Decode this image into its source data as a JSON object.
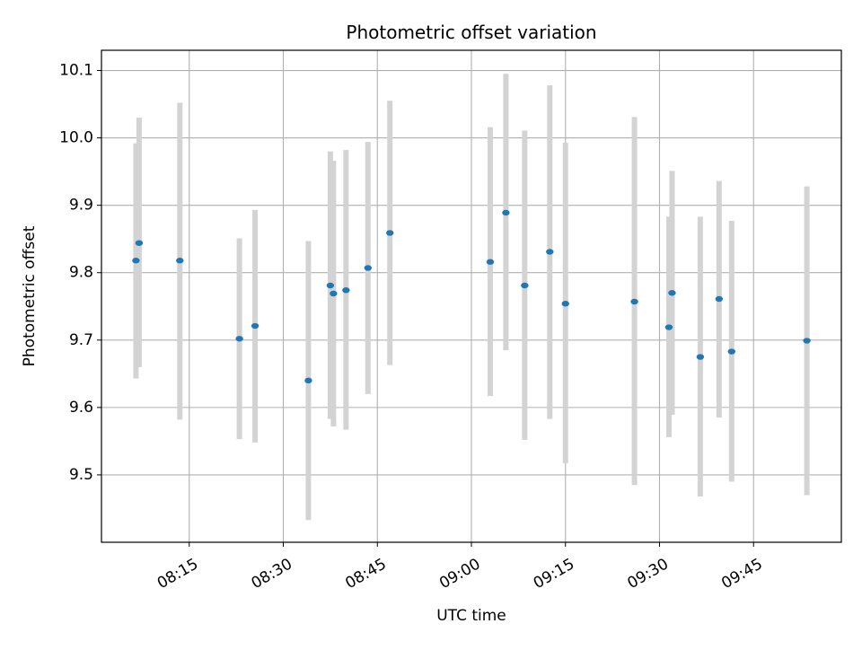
{
  "chart_data": {
    "type": "scatter",
    "title": "Photometric offset variation",
    "xlabel": "UTC time",
    "ylabel": "Photometric offset",
    "xlim": [
      "08:01",
      "09:59"
    ],
    "ylim": [
      9.4,
      10.13
    ],
    "xticks": [
      "08:15",
      "08:30",
      "08:45",
      "09:00",
      "09:15",
      "09:30",
      "09:45"
    ],
    "yticks": [
      "9.5",
      "9.6",
      "9.7",
      "9.8",
      "9.9",
      "10.0",
      "10.1"
    ],
    "grid": true,
    "series": [
      {
        "marker_color": "#1f77b4",
        "errorbar_color": "#d3d3d3",
        "points": [
          {
            "t": "08:06:30",
            "y": 9.818,
            "lo": 9.643,
            "hi": 9.992
          },
          {
            "t": "08:07:00",
            "y": 9.844,
            "lo": 9.66,
            "hi": 10.03
          },
          {
            "t": "08:13:30",
            "y": 9.818,
            "lo": 9.582,
            "hi": 10.052
          },
          {
            "t": "08:23:00",
            "y": 9.702,
            "lo": 9.553,
            "hi": 9.851
          },
          {
            "t": "08:25:30",
            "y": 9.721,
            "lo": 9.548,
            "hi": 9.893
          },
          {
            "t": "08:34:00",
            "y": 9.64,
            "lo": 9.433,
            "hi": 9.847
          },
          {
            "t": "08:37:30",
            "y": 9.781,
            "lo": 9.583,
            "hi": 9.98
          },
          {
            "t": "08:38:00",
            "y": 9.769,
            "lo": 9.572,
            "hi": 9.966
          },
          {
            "t": "08:40:00",
            "y": 9.774,
            "lo": 9.567,
            "hi": 9.982
          },
          {
            "t": "08:43:30",
            "y": 9.807,
            "lo": 9.62,
            "hi": 9.994
          },
          {
            "t": "08:47:00",
            "y": 9.859,
            "lo": 9.663,
            "hi": 10.055
          },
          {
            "t": "09:03:00",
            "y": 9.816,
            "lo": 9.617,
            "hi": 10.016
          },
          {
            "t": "09:05:30",
            "y": 9.889,
            "lo": 9.685,
            "hi": 10.095
          },
          {
            "t": "09:08:30",
            "y": 9.781,
            "lo": 9.552,
            "hi": 10.011
          },
          {
            "t": "09:12:30",
            "y": 9.831,
            "lo": 9.583,
            "hi": 10.078
          },
          {
            "t": "09:15:00",
            "y": 9.754,
            "lo": 9.517,
            "hi": 9.993
          },
          {
            "t": "09:26:00",
            "y": 9.757,
            "lo": 9.485,
            "hi": 10.031
          },
          {
            "t": "09:31:30",
            "y": 9.719,
            "lo": 9.556,
            "hi": 9.883
          },
          {
            "t": "09:32:00",
            "y": 9.77,
            "lo": 9.589,
            "hi": 9.951
          },
          {
            "t": "09:36:30",
            "y": 9.675,
            "lo": 9.468,
            "hi": 9.883
          },
          {
            "t": "09:39:30",
            "y": 9.761,
            "lo": 9.585,
            "hi": 9.936
          },
          {
            "t": "09:41:30",
            "y": 9.683,
            "lo": 9.49,
            "hi": 9.877
          },
          {
            "t": "09:53:30",
            "y": 9.699,
            "lo": 9.47,
            "hi": 9.928
          }
        ]
      }
    ]
  }
}
